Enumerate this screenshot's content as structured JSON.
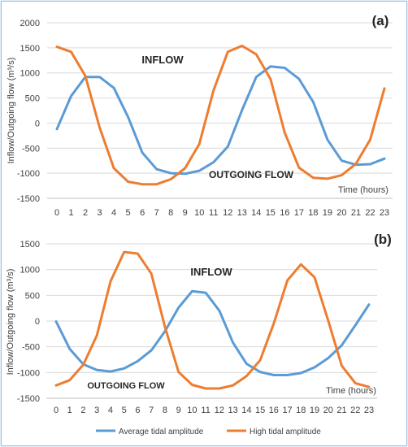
{
  "colors": {
    "average": "#5b9bd5",
    "high": "#ed7d31",
    "grid": "#d9d9d9",
    "axis_text": "#404040",
    "frame": "#9bbfe0"
  },
  "legend": {
    "average_label": "Average tidal amplitude",
    "high_label": "High tidal amplitude"
  },
  "chart_data": [
    {
      "type": "line",
      "panel": "(a)",
      "ylabel": "Inflow/Outgoing flow (m³/s)",
      "xlabel": "Time (hours)",
      "ylim": [
        -1500,
        2000
      ],
      "yticks": [
        -1500,
        -1000,
        -500,
        0,
        500,
        1000,
        1500,
        2000
      ],
      "grid": "horizontal",
      "annotations": [
        "INFLOW",
        "OUTGOING FLOW"
      ],
      "x": [
        0,
        1,
        2,
        3,
        4,
        5,
        6,
        7,
        8,
        9,
        10,
        11,
        12,
        13,
        14,
        15,
        16,
        17,
        18,
        19,
        20,
        21,
        22,
        23
      ],
      "series": [
        {
          "name": "Average tidal amplitude",
          "values": [
            -120,
            540,
            920,
            920,
            700,
            120,
            -590,
            -920,
            -1000,
            -1010,
            -950,
            -780,
            -470,
            260,
            920,
            1130,
            1100,
            880,
            420,
            -330,
            -750,
            -830,
            -820,
            -710
          ]
        },
        {
          "name": "High tidal amplitude",
          "values": [
            1520,
            1420,
            940,
            -90,
            -900,
            -1170,
            -1220,
            -1220,
            -1120,
            -900,
            -420,
            650,
            1420,
            1540,
            1370,
            880,
            -190,
            -890,
            -1090,
            -1110,
            -1040,
            -810,
            -330,
            690
          ]
        }
      ]
    },
    {
      "type": "line",
      "panel": "(b)",
      "ylabel": "Inflow/Outgoing flow (m³/s)",
      "xlabel": "Time (hours)",
      "ylim": [
        -1500,
        1500
      ],
      "yticks": [
        -1500,
        -1000,
        -500,
        0,
        500,
        1000,
        1500
      ],
      "grid": "horizontal",
      "annotations": [
        "INFLOW",
        "OUTGOING FLOW"
      ],
      "x": [
        0,
        1,
        2,
        3,
        4,
        5,
        6,
        7,
        8,
        9,
        10,
        11,
        12,
        13,
        14,
        15,
        16,
        17,
        18,
        19,
        20,
        21,
        22,
        23
      ],
      "series": [
        {
          "name": "Average tidal amplitude",
          "values": [
            -10,
            -540,
            -840,
            -950,
            -980,
            -920,
            -780,
            -570,
            -200,
            260,
            580,
            550,
            200,
            -420,
            -830,
            -990,
            -1050,
            -1050,
            -1010,
            -900,
            -720,
            -470,
            -80,
            320
          ]
        },
        {
          "name": "High tidal amplitude",
          "values": [
            -1250,
            -1150,
            -850,
            -280,
            770,
            1340,
            1310,
            920,
            -110,
            -990,
            -1240,
            -1310,
            -1310,
            -1250,
            -1070,
            -760,
            -50,
            790,
            1100,
            850,
            10,
            -870,
            -1210,
            -1280
          ]
        }
      ]
    }
  ]
}
